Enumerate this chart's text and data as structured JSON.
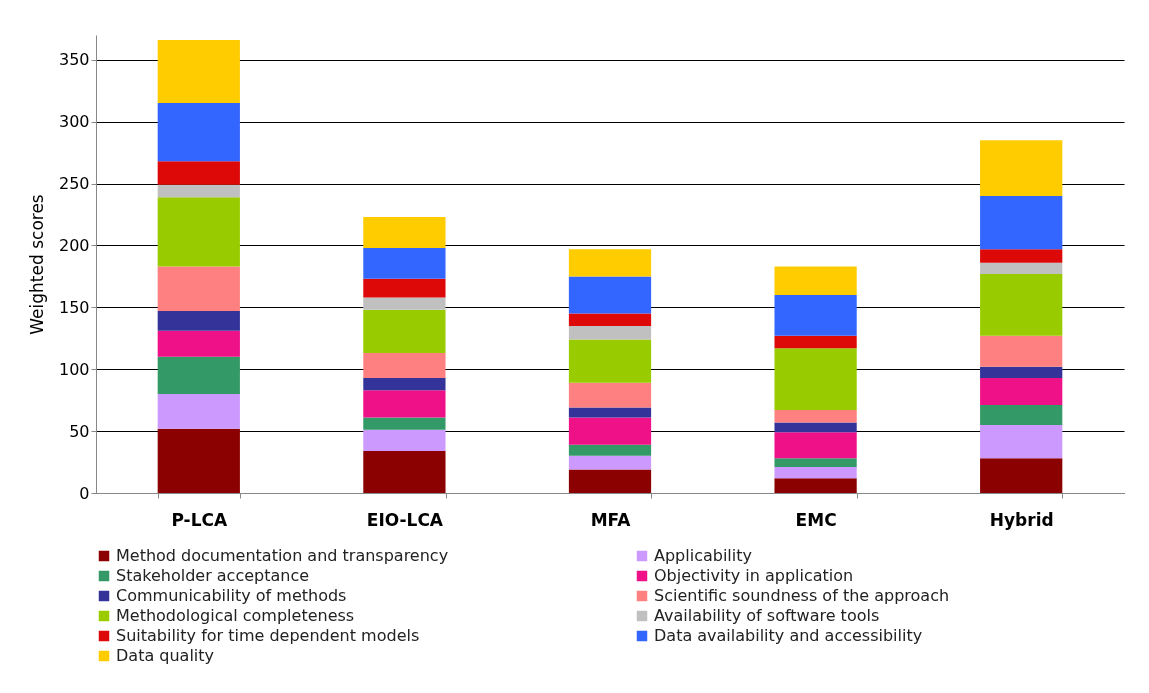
{
  "chart_data": {
    "type": "bar",
    "stacked": true,
    "ylabel": "Weighted scores",
    "categories": [
      "P-LCA",
      "EIO-LCA",
      "MFA",
      "EMC",
      "Hybrid"
    ],
    "series": [
      {
        "name": "Method documentation and transparency",
        "color": "#8b0000",
        "values": [
          52,
          34,
          19,
          12,
          28
        ]
      },
      {
        "name": "Applicability",
        "color": "#cc99ff",
        "values": [
          28,
          17,
          11,
          9,
          27
        ]
      },
      {
        "name": "Stakeholder acceptance",
        "color": "#339966",
        "values": [
          30,
          10,
          9,
          7,
          16
        ]
      },
      {
        "name": "Objectivity in application",
        "color": "#ee1188",
        "values": [
          21,
          22,
          22,
          21,
          22
        ]
      },
      {
        "name": "Communicability of methods",
        "color": "#333399",
        "values": [
          16,
          10,
          8,
          8,
          9
        ]
      },
      {
        "name": "Scientific soundness of the approach",
        "color": "#ff8080",
        "values": [
          36,
          20,
          20,
          10,
          25
        ]
      },
      {
        "name": "Methodological completeness",
        "color": "#99cc00",
        "values": [
          56,
          35,
          35,
          50,
          50
        ]
      },
      {
        "name": "Availability of software tools",
        "color": "#c0c0c0",
        "values": [
          10,
          10,
          11,
          0,
          9
        ]
      },
      {
        "name": "Suitability for time dependent models",
        "color": "#dd0808",
        "values": [
          19,
          15,
          10,
          10,
          11
        ]
      },
      {
        "name": "Data availability and accessibility",
        "color": "#3366ff",
        "values": [
          47,
          25,
          30,
          33,
          43
        ]
      },
      {
        "name": "Data quality",
        "color": "#ffcc00",
        "values": [
          51,
          25,
          22,
          23,
          45
        ]
      }
    ],
    "ylim": [
      0,
      370
    ],
    "yticks": [
      0,
      50,
      100,
      150,
      200,
      250,
      300,
      350
    ],
    "grid": "y",
    "legend": "bottom"
  }
}
